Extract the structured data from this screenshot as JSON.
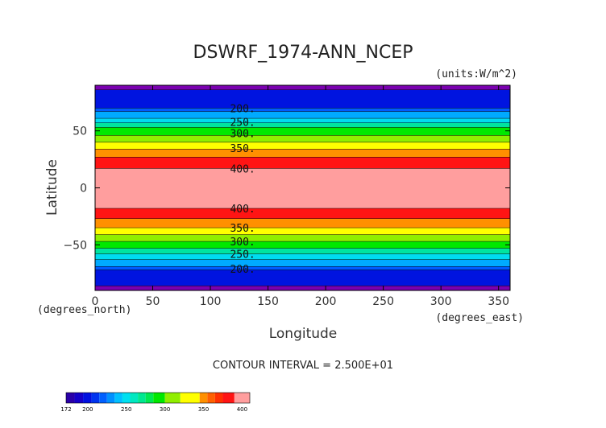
{
  "chart_data": {
    "type": "heatmap",
    "title": "DSWRF_1974-ANN_NCEP",
    "units_label": "(units:W/m^2)",
    "xlabel": "Longitude",
    "ylabel": "Latitude",
    "x_units_label": "(degrees_east)",
    "y_units_label": "(degrees_north)",
    "xlim": [
      0,
      360
    ],
    "ylim": [
      -90,
      90
    ],
    "x_ticks": [
      0,
      50,
      100,
      150,
      200,
      250,
      300,
      350
    ],
    "y_ticks": [
      -50,
      0,
      50
    ],
    "bands": [
      {
        "lat_min": 86,
        "lat_max": 90,
        "color": "#7a00b0"
      },
      {
        "lat_min": 70,
        "lat_max": 86,
        "color": "#0014e0"
      },
      {
        "lat_min": 67,
        "lat_max": 70,
        "color": "#005cff"
      },
      {
        "lat_min": 61,
        "lat_max": 67,
        "color": "#00aaff"
      },
      {
        "lat_min": 57,
        "lat_max": 61,
        "color": "#00dcf0"
      },
      {
        "lat_min": 53,
        "lat_max": 57,
        "color": "#00e4a0"
      },
      {
        "lat_min": 46,
        "lat_max": 53,
        "color": "#00e800"
      },
      {
        "lat_min": 40,
        "lat_max": 46,
        "color": "#90ee00"
      },
      {
        "lat_min": 34,
        "lat_max": 40,
        "color": "#ffff00"
      },
      {
        "lat_min": 27,
        "lat_max": 34,
        "color": "#ff9000"
      },
      {
        "lat_min": 17,
        "lat_max": 27,
        "color": "#ff1414"
      },
      {
        "lat_min": -18,
        "lat_max": 17,
        "color": "#ff9e9e"
      },
      {
        "lat_min": -27,
        "lat_max": -18,
        "color": "#ff1414"
      },
      {
        "lat_min": -35,
        "lat_max": -27,
        "color": "#ff9000"
      },
      {
        "lat_min": -41,
        "lat_max": -35,
        "color": "#ffff00"
      },
      {
        "lat_min": -47,
        "lat_max": -41,
        "color": "#90ee00"
      },
      {
        "lat_min": -53,
        "lat_max": -47,
        "color": "#00e800"
      },
      {
        "lat_min": -58,
        "lat_max": -53,
        "color": "#00e4a0"
      },
      {
        "lat_min": -63,
        "lat_max": -58,
        "color": "#00dcf0"
      },
      {
        "lat_min": -69,
        "lat_max": -63,
        "color": "#00aaff"
      },
      {
        "lat_min": -72,
        "lat_max": -69,
        "color": "#005cff"
      },
      {
        "lat_min": -86,
        "lat_max": -72,
        "color": "#0014e0"
      },
      {
        "lat_min": -90,
        "lat_max": -86,
        "color": "#7a00b0"
      }
    ],
    "contour_labels": [
      {
        "text": "200.",
        "lat": 70
      },
      {
        "text": "250.",
        "lat": 58
      },
      {
        "text": "300.",
        "lat": 48
      },
      {
        "text": "350.",
        "lat": 35
      },
      {
        "text": "400.",
        "lat": 17
      },
      {
        "text": "400.",
        "lat": -18
      },
      {
        "text": "350.",
        "lat": -35
      },
      {
        "text": "300.",
        "lat": -47
      },
      {
        "text": "250.",
        "lat": -58
      },
      {
        "text": "200.",
        "lat": -71
      }
    ],
    "contour_label_lon": 128,
    "footer": "CONTOUR INTERVAL = 2.500E+01",
    "colorbar": {
      "min": 172,
      "max": 410,
      "tick_labels": [
        {
          "text": "172",
          "value": 172
        },
        {
          "text": "200",
          "value": 200
        },
        {
          "text": "250",
          "value": 250
        },
        {
          "text": "300",
          "value": 300
        },
        {
          "text": "350",
          "value": 350
        },
        {
          "text": "400",
          "value": 400
        }
      ],
      "segments": [
        {
          "from": 172,
          "to": 183,
          "color": "#2a00a8"
        },
        {
          "from": 183,
          "to": 194,
          "color": "#1500c8"
        },
        {
          "from": 194,
          "to": 205,
          "color": "#0010e0"
        },
        {
          "from": 205,
          "to": 215,
          "color": "#0034f0"
        },
        {
          "from": 215,
          "to": 225,
          "color": "#0060ff"
        },
        {
          "from": 225,
          "to": 235,
          "color": "#0090ff"
        },
        {
          "from": 235,
          "to": 245,
          "color": "#00c0ff"
        },
        {
          "from": 245,
          "to": 255,
          "color": "#00e0f0"
        },
        {
          "from": 255,
          "to": 265,
          "color": "#00e8c0"
        },
        {
          "from": 265,
          "to": 275,
          "color": "#00e890"
        },
        {
          "from": 275,
          "to": 285,
          "color": "#00e850"
        },
        {
          "from": 285,
          "to": 300,
          "color": "#00e800"
        },
        {
          "from": 300,
          "to": 320,
          "color": "#90ee00"
        },
        {
          "from": 320,
          "to": 345,
          "color": "#ffff00"
        },
        {
          "from": 345,
          "to": 355,
          "color": "#ff9000"
        },
        {
          "from": 355,
          "to": 365,
          "color": "#ff6000"
        },
        {
          "from": 365,
          "to": 375,
          "color": "#ff3000"
        },
        {
          "from": 375,
          "to": 390,
          "color": "#ff1414"
        },
        {
          "from": 390,
          "to": 410,
          "color": "#ff9e9e"
        }
      ]
    }
  }
}
